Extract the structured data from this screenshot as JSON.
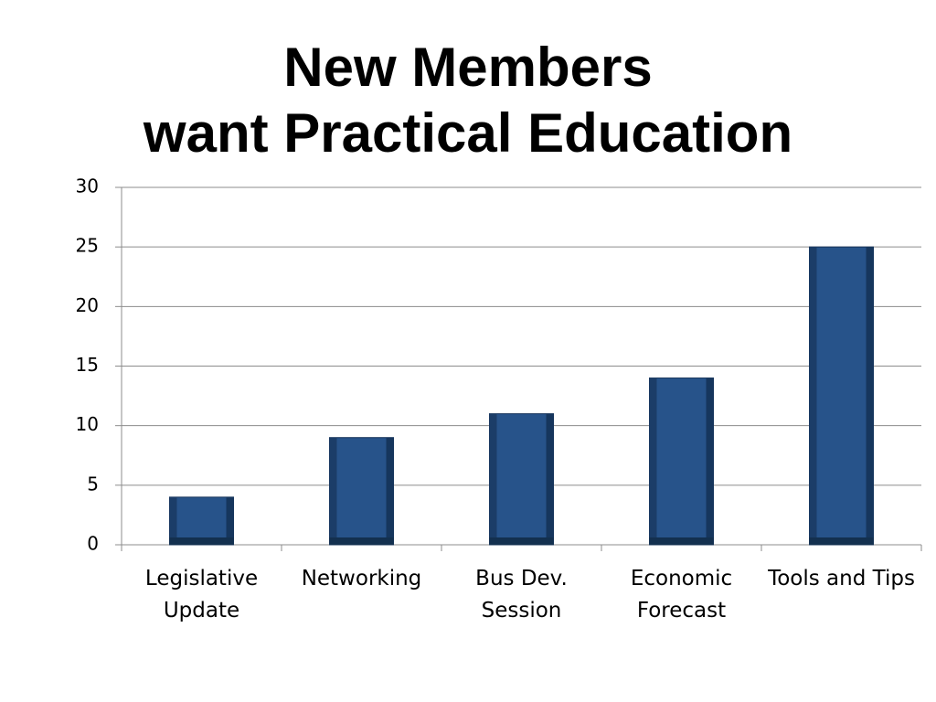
{
  "chart_data": {
    "type": "bar",
    "title": "New Members\nwant Practical Education",
    "categories": [
      "Legislative\nUpdate",
      "Networking",
      "Bus Dev.\nSession",
      "Economic\nForecast",
      "Tools and Tips"
    ],
    "values": [
      4,
      9,
      11,
      14,
      25
    ],
    "color": "#27538a",
    "ylim": [
      0,
      30
    ],
    "yticks": [
      0,
      5,
      10,
      15,
      20,
      25,
      30
    ],
    "grid": true
  }
}
